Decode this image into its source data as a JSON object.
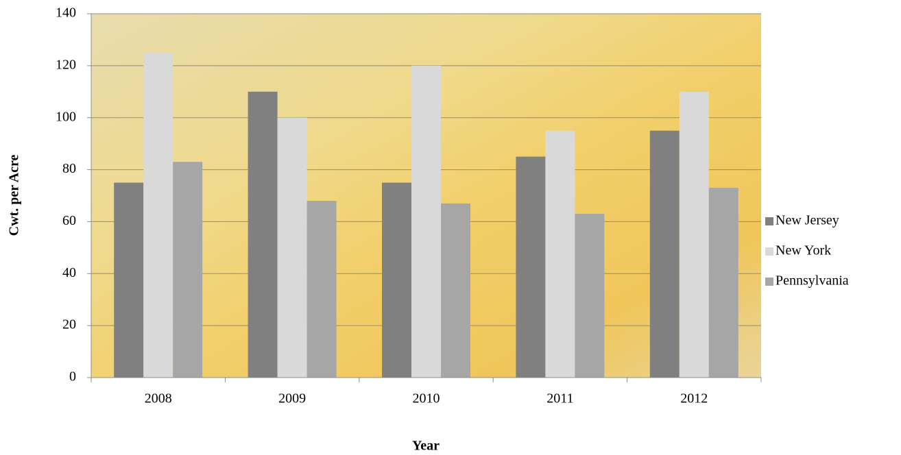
{
  "chart_data": {
    "type": "bar",
    "x_label": "Year",
    "y_label": "Cwt. per Acre",
    "categories": [
      "2008",
      "2009",
      "2010",
      "2011",
      "2012"
    ],
    "series": [
      {
        "name": "New Jersey",
        "color": "#808080",
        "values": [
          75,
          110,
          75,
          85,
          95
        ]
      },
      {
        "name": "New York",
        "color": "#d9d9d9",
        "values": [
          125,
          100,
          120,
          95,
          110
        ]
      },
      {
        "name": "Pennsylvania",
        "color": "#a6a6a6",
        "values": [
          83,
          68,
          67,
          63,
          73
        ]
      }
    ],
    "ylim": [
      0,
      140
    ],
    "yticks": [
      0,
      20,
      40,
      60,
      80,
      100,
      120,
      140
    ],
    "grid": true,
    "legend": "right"
  }
}
